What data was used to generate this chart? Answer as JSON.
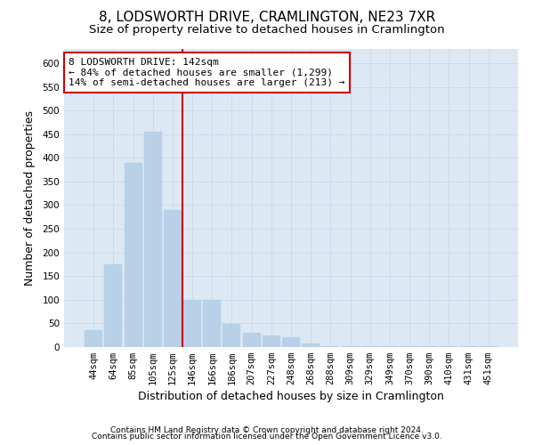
{
  "title1": "8, LODSWORTH DRIVE, CRAMLINGTON, NE23 7XR",
  "title2": "Size of property relative to detached houses in Cramlington",
  "xlabel": "Distribution of detached houses by size in Cramlington",
  "ylabel": "Number of detached properties",
  "categories": [
    "44sqm",
    "64sqm",
    "85sqm",
    "105sqm",
    "125sqm",
    "146sqm",
    "166sqm",
    "186sqm",
    "207sqm",
    "227sqm",
    "248sqm",
    "268sqm",
    "288sqm",
    "309sqm",
    "329sqm",
    "349sqm",
    "370sqm",
    "390sqm",
    "410sqm",
    "431sqm",
    "451sqm"
  ],
  "values": [
    35,
    175,
    390,
    455,
    290,
    100,
    100,
    48,
    30,
    25,
    20,
    8,
    2,
    1,
    2,
    1,
    1,
    1,
    1,
    1,
    1
  ],
  "bar_color": "#b8d0e8",
  "bar_edge_color": "#b8d0e8",
  "vline_color": "#cc0000",
  "annotation_text": "8 LODSWORTH DRIVE: 142sqm\n← 84% of detached houses are smaller (1,299)\n14% of semi-detached houses are larger (213) →",
  "annotation_box_color": "#ffffff",
  "annotation_box_edge": "#cc0000",
  "ylim": [
    0,
    630
  ],
  "yticks": [
    0,
    50,
    100,
    150,
    200,
    250,
    300,
    350,
    400,
    450,
    500,
    550,
    600
  ],
  "plot_bg_color": "#dce9f5",
  "footer1": "Contains HM Land Registry data © Crown copyright and database right 2024.",
  "footer2": "Contains public sector information licensed under the Open Government Licence v3.0.",
  "title1_fontsize": 11,
  "title2_fontsize": 9.5,
  "tick_fontsize": 7.5,
  "label_fontsize": 9,
  "footer_fontsize": 6.5
}
